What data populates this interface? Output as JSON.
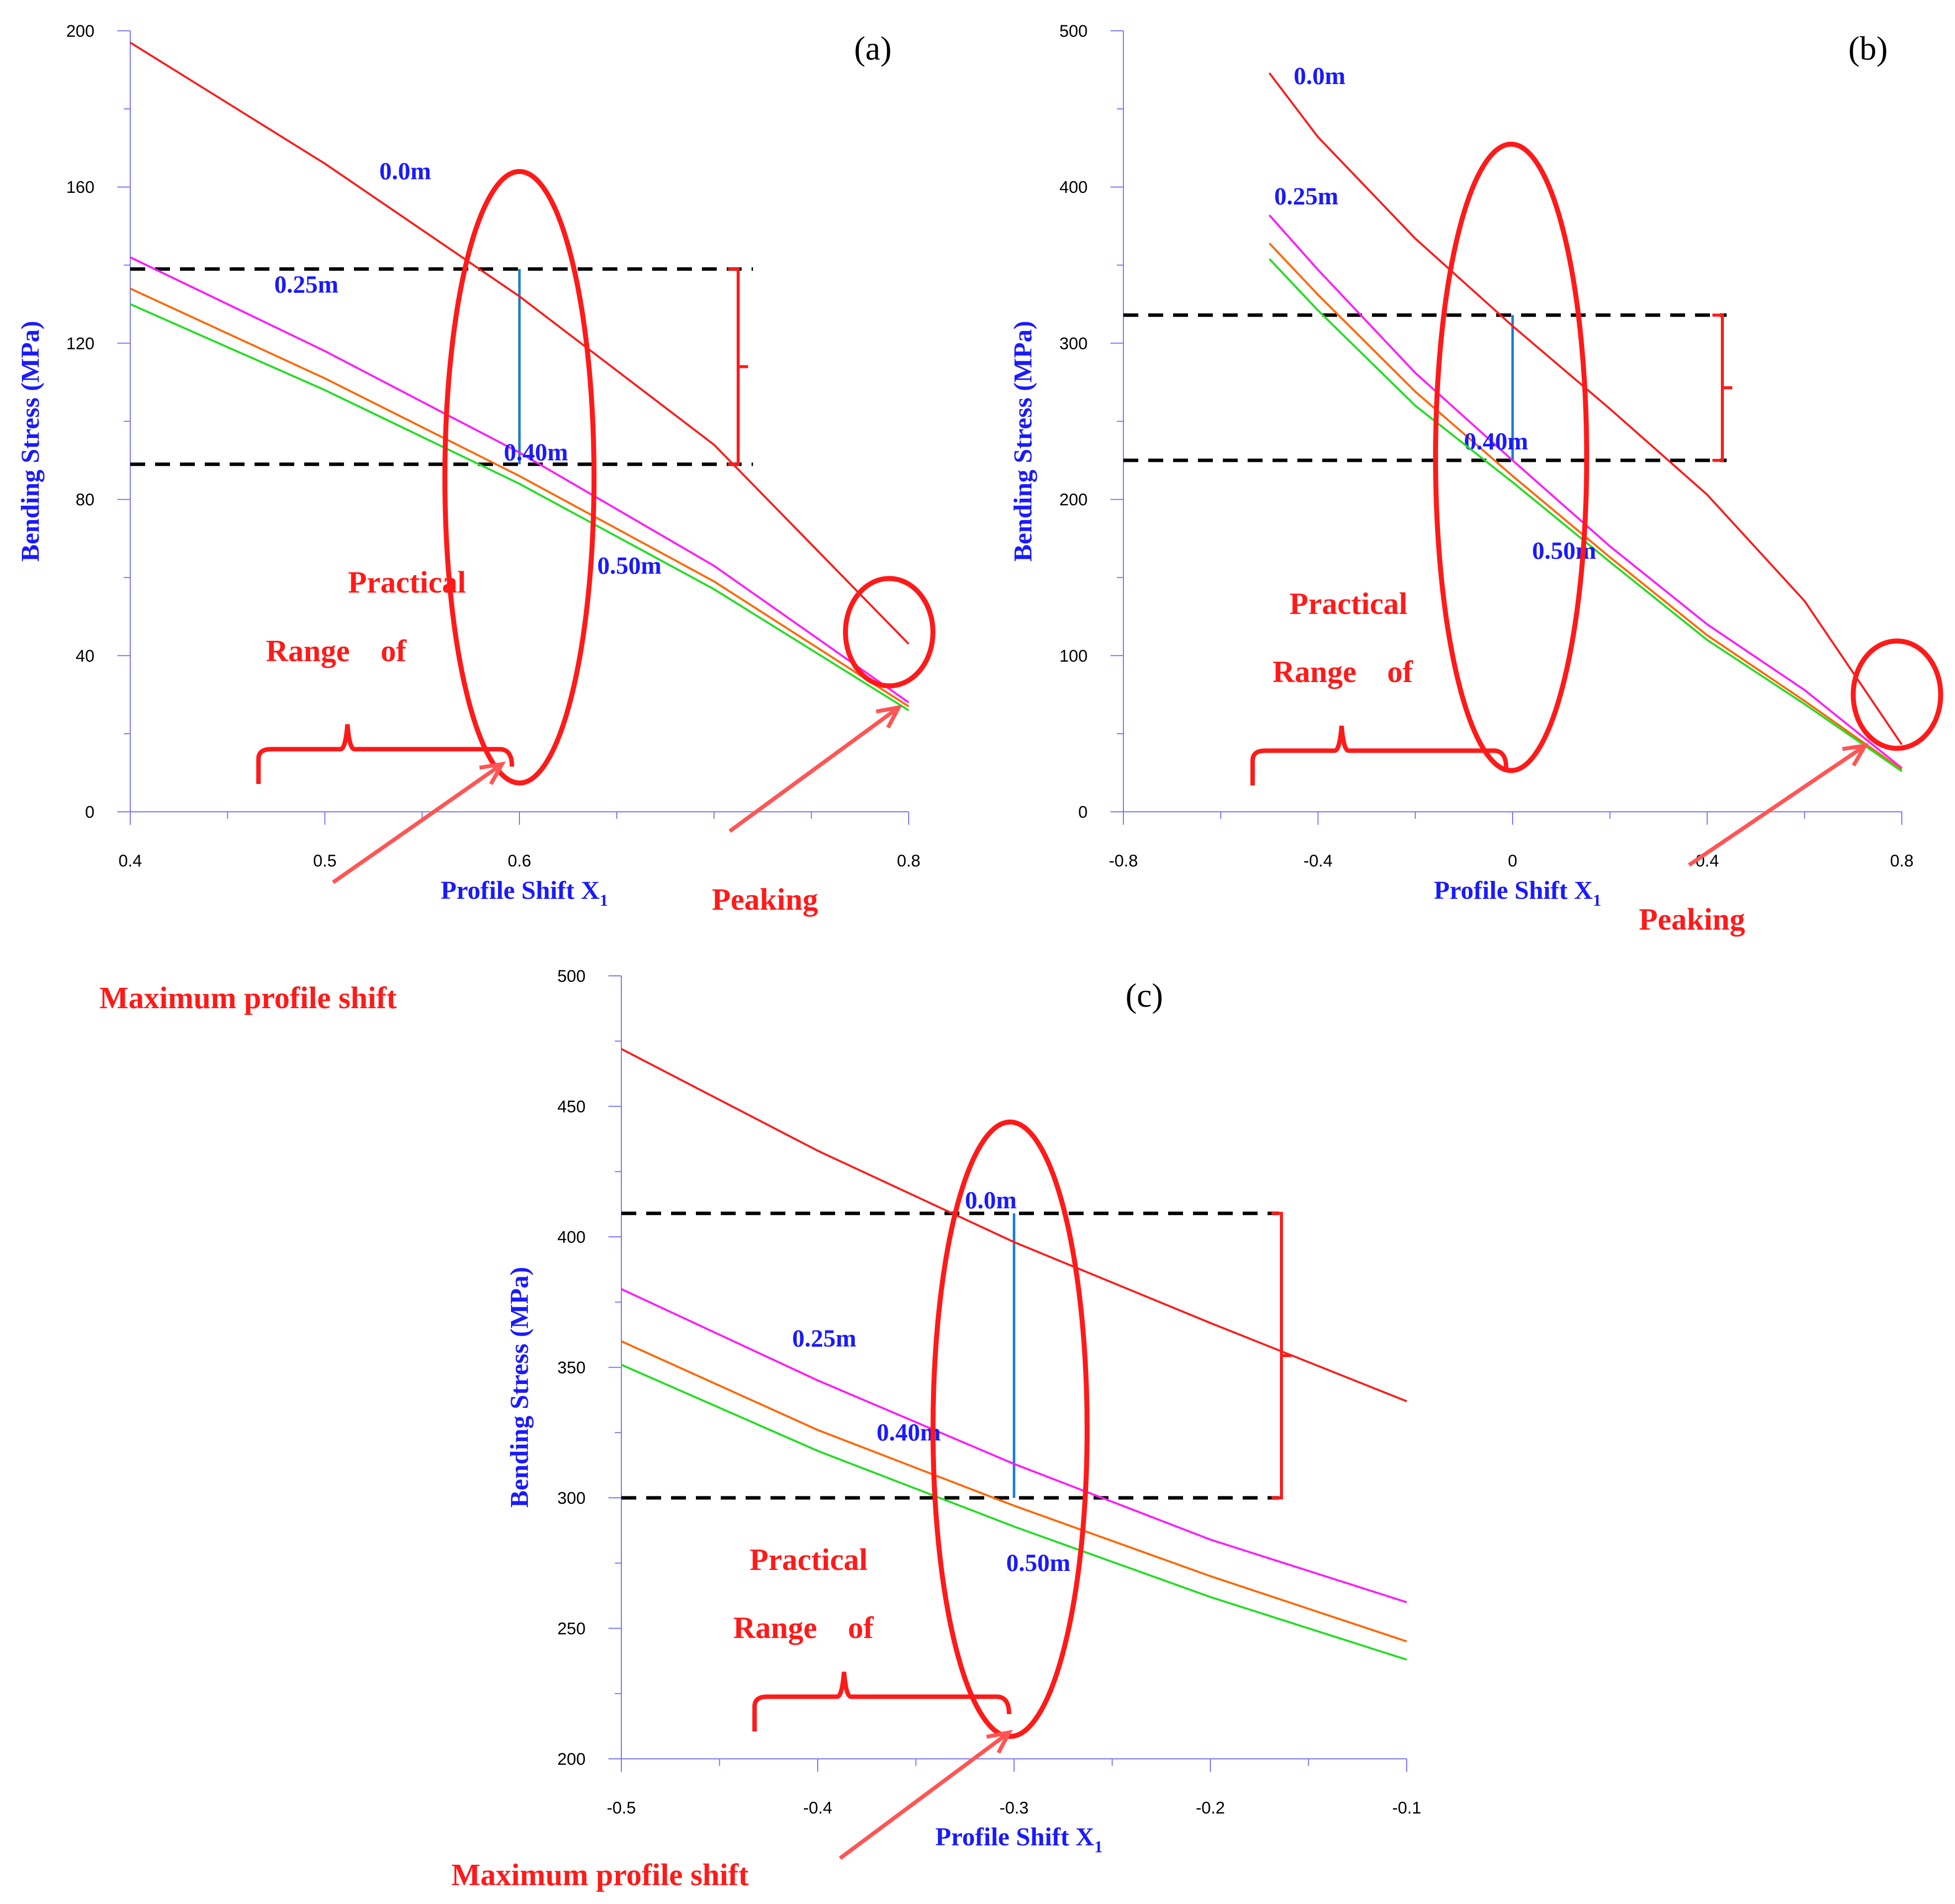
{
  "colors": {
    "axis": "#7070ff",
    "series_0": "#ff1a1a",
    "series_25": "#ff1aff",
    "series_40": "#ff6600",
    "series_50": "#22dd22",
    "dashed": "#000000",
    "marker": "#1a7acc",
    "annotation": "#ff1a1a",
    "arrow": "#ff5555",
    "label": "#1a1aff"
  },
  "chart_data": [
    {
      "id": "a",
      "type": "line",
      "panel_label": "(a)",
      "xlabel": "Profile Shift X",
      "xlabel_sub": "1",
      "ylabel": "Bending Stress (MPa)",
      "xlim": [
        0.4,
        0.8
      ],
      "ylim": [
        0,
        200
      ],
      "x_ticks": [
        0.4,
        0.5,
        0.6,
        0.8
      ],
      "x_minor_ticks": [
        0.45,
        0.55,
        0.65,
        0.7,
        0.75
      ],
      "y_ticks": [
        0,
        40,
        80,
        120,
        160,
        200
      ],
      "y_tick_labels": [
        "0",
        "40",
        "80",
        "120",
        "160",
        "200"
      ],
      "x_tick_labels": [
        "0.4",
        "0.5",
        "0.6",
        "0.8"
      ],
      "series": [
        {
          "name": "0.0m",
          "color_key": "series_0",
          "x": [
            0.4,
            0.5,
            0.6,
            0.7,
            0.8
          ],
          "y": [
            197,
            166,
            132,
            94,
            43
          ]
        },
        {
          "name": "0.25m",
          "color_key": "series_25",
          "x": [
            0.4,
            0.5,
            0.6,
            0.7,
            0.8
          ],
          "y": [
            142,
            118,
            92,
            63,
            28
          ]
        },
        {
          "name": "0.40m",
          "color_key": "series_40",
          "x": [
            0.4,
            0.5,
            0.6,
            0.7,
            0.8
          ],
          "y": [
            134,
            111,
            86,
            59,
            27
          ]
        },
        {
          "name": "0.50m",
          "color_key": "series_50",
          "x": [
            0.4,
            0.5,
            0.6,
            0.7,
            0.8
          ],
          "y": [
            130,
            108,
            84,
            57,
            26
          ]
        }
      ],
      "series_label_pos": [
        [
          0.528,
          162
        ],
        [
          0.474,
          133
        ],
        [
          0.592,
          90
        ],
        [
          0.64,
          61
        ]
      ],
      "dashed_levels": [
        139,
        89
      ],
      "dashed_range": [
        0.4,
        0.72
      ],
      "marker_x": 0.6,
      "ellipse_small": {
        "x": 0.79,
        "y": 46
      },
      "texts": {
        "practical": "Practical",
        "range_of": "Range    of",
        "peaking": "Peaking"
      }
    },
    {
      "id": "b",
      "type": "line",
      "panel_label": "(b)",
      "xlabel": "Profile Shift X",
      "xlabel_sub": "1",
      "ylabel": "Bending Stress (MPa)",
      "xlim": [
        -0.8,
        0.8
      ],
      "ylim": [
        0,
        500
      ],
      "x_ticks": [
        -0.8,
        -0.4,
        0,
        0.4,
        0.8
      ],
      "x_minor_ticks": [
        -0.6,
        -0.2,
        0.2,
        0.6
      ],
      "y_ticks": [
        0,
        100,
        200,
        300,
        400,
        500
      ],
      "y_tick_labels": [
        "0",
        "100",
        "200",
        "300",
        "400",
        "500"
      ],
      "x_tick_labels": [
        "-0.8",
        "-0.4",
        "0",
        "0.4",
        "0.8"
      ],
      "series": [
        {
          "name": "0.0m",
          "color_key": "series_0",
          "x": [
            -0.5,
            -0.4,
            -0.2,
            0,
            0.2,
            0.4,
            0.6,
            0.8
          ],
          "y": [
            473,
            432,
            367,
            311,
            258,
            203,
            135,
            43
          ]
        },
        {
          "name": "0.25m",
          "color_key": "series_25",
          "x": [
            -0.5,
            -0.4,
            -0.2,
            0,
            0.2,
            0.4,
            0.6,
            0.8
          ],
          "y": [
            382,
            347,
            281,
            225,
            170,
            120,
            78,
            28
          ]
        },
        {
          "name": "0.40m",
          "color_key": "series_40",
          "x": [
            -0.5,
            -0.4,
            -0.2,
            0,
            0.2,
            0.4,
            0.6,
            0.8
          ],
          "y": [
            364,
            331,
            269,
            215,
            163,
            113,
            71,
            27
          ]
        },
        {
          "name": "0.50m",
          "color_key": "series_50",
          "x": [
            -0.5,
            -0.4,
            -0.2,
            0,
            0.2,
            0.4,
            0.6,
            0.8
          ],
          "y": [
            354,
            321,
            260,
            211,
            160,
            110,
            69,
            26
          ]
        }
      ],
      "series_label_pos": [
        [
          -0.45,
          466
        ],
        [
          -0.49,
          389
        ],
        [
          -0.1,
          232
        ],
        [
          0.04,
          162
        ]
      ],
      "dashed_levels": [
        318,
        225
      ],
      "dashed_range": [
        -0.8,
        0.44
      ],
      "marker_x": 0,
      "ellipse_small": {
        "x": 0.79,
        "y": 75
      },
      "texts": {
        "practical": "Practical",
        "range_of": "Range    of",
        "peaking": "Peaking"
      }
    },
    {
      "id": "c",
      "type": "line",
      "panel_label": "(c)",
      "xlabel": "Profile Shift X",
      "xlabel_sub": "1",
      "ylabel": "Bending Stress (MPa)",
      "xlim": [
        -0.5,
        -0.1
      ],
      "ylim": [
        200,
        500
      ],
      "x_ticks": [
        -0.5,
        -0.4,
        -0.3,
        -0.2,
        -0.1
      ],
      "x_minor_ticks": [
        -0.45,
        -0.35,
        -0.25,
        -0.15
      ],
      "y_ticks": [
        200,
        250,
        300,
        350,
        400,
        450,
        500
      ],
      "y_tick_labels": [
        "200",
        "250",
        "300",
        "350",
        "400",
        "450",
        "500"
      ],
      "x_tick_labels": [
        "-0.5",
        "-0.4",
        "-0.3",
        "-0.2",
        "-0.1"
      ],
      "series": [
        {
          "name": "0.0m",
          "color_key": "series_0",
          "x": [
            -0.5,
            -0.4,
            -0.3,
            -0.2,
            -0.1
          ],
          "y": [
            472,
            433,
            398,
            367,
            337
          ]
        },
        {
          "name": "0.25m",
          "color_key": "series_25",
          "x": [
            -0.5,
            -0.4,
            -0.3,
            -0.2,
            -0.1
          ],
          "y": [
            380,
            345,
            313,
            284,
            260
          ]
        },
        {
          "name": "0.40m",
          "color_key": "series_40",
          "x": [
            -0.5,
            -0.4,
            -0.3,
            -0.2,
            -0.1
          ],
          "y": [
            360,
            326,
            297,
            270,
            245
          ]
        },
        {
          "name": "0.50m",
          "color_key": "series_50",
          "x": [
            -0.5,
            -0.4,
            -0.3,
            -0.2,
            -0.1
          ],
          "y": [
            351,
            318,
            289,
            262,
            238
          ]
        }
      ],
      "series_label_pos": [
        [
          -0.325,
          411
        ],
        [
          -0.413,
          358
        ],
        [
          -0.37,
          322
        ],
        [
          -0.304,
          272
        ]
      ],
      "dashed_levels": [
        409,
        300
      ],
      "dashed_range": [
        -0.5,
        -0.165
      ],
      "marker_x": -0.3,
      "texts": {
        "practical": "Practical",
        "range_of": "Range    of"
      }
    }
  ],
  "annotations": {
    "max_profile_shift": "Maximum profile shift"
  }
}
